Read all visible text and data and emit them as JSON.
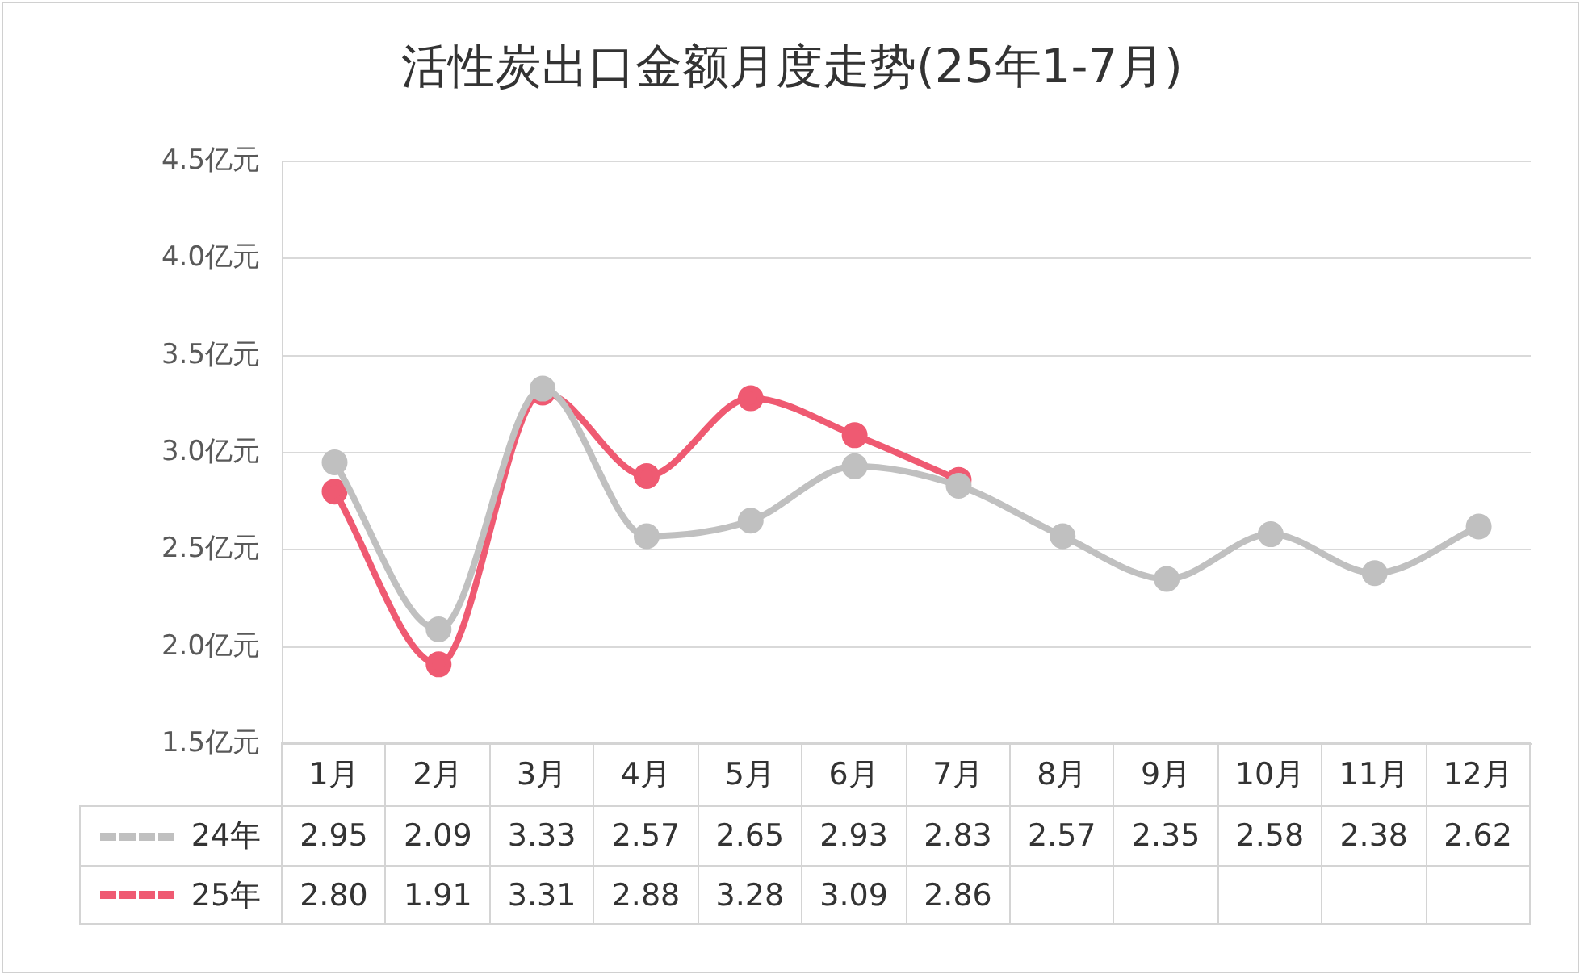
{
  "chart_data": {
    "type": "line",
    "title": "活性炭出口金额月度走势(25年1-7月)",
    "categories": [
      "1月",
      "2月",
      "3月",
      "4月",
      "5月",
      "6月",
      "7月",
      "8月",
      "9月",
      "10月",
      "11月",
      "12月"
    ],
    "series": [
      {
        "name": "24年",
        "color": "#c0c0c0",
        "values": [
          2.95,
          2.09,
          3.33,
          2.57,
          2.65,
          2.93,
          2.83,
          2.57,
          2.35,
          2.58,
          2.38,
          2.62
        ],
        "value_labels": [
          "2.95",
          "2.09",
          "3.33",
          "2.57",
          "2.65",
          "2.93",
          "2.83",
          "2.57",
          "2.35",
          "2.58",
          "2.38",
          "2.62"
        ]
      },
      {
        "name": "25年",
        "color": "#ef5a72",
        "values": [
          2.8,
          1.91,
          3.31,
          2.88,
          3.28,
          3.09,
          2.86,
          null,
          null,
          null,
          null,
          null
        ],
        "value_labels": [
          "2.80",
          "1.91",
          "3.31",
          "2.88",
          "3.28",
          "3.09",
          "2.86",
          null,
          null,
          null,
          null,
          null
        ]
      }
    ],
    "ylim": [
      1.5,
      4.5
    ],
    "yticks": [
      {
        "value": 1.5,
        "label": "1.5亿元"
      },
      {
        "value": 2,
        "label": "2.0亿元"
      },
      {
        "value": 2.5,
        "label": "2.5亿元"
      },
      {
        "value": 3,
        "label": "3.0亿元"
      },
      {
        "value": 3.5,
        "label": "3.5亿元"
      },
      {
        "value": 4,
        "label": "4.0亿元"
      },
      {
        "value": 4.5,
        "label": "4.5亿元"
      }
    ],
    "grid": "y",
    "legend": "bottom left",
    "marker": "circle",
    "line_style": "solid"
  }
}
